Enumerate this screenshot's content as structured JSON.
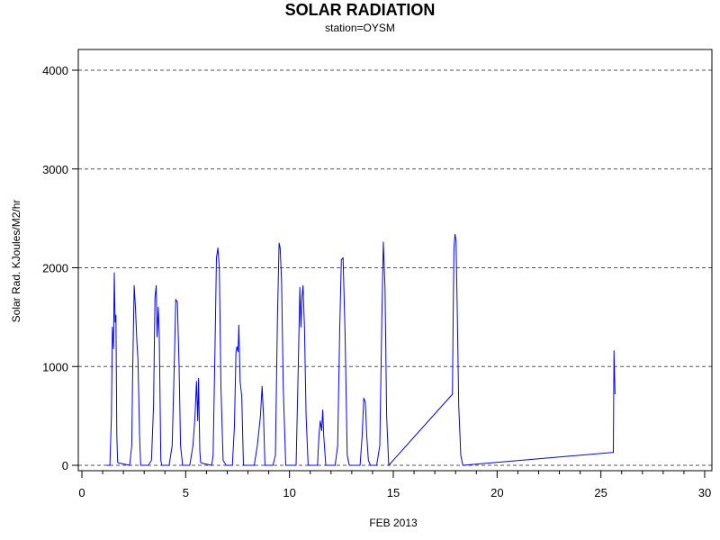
{
  "chart_data": {
    "type": "line",
    "title": "SOLAR RADIATION",
    "subtitle": "station=OYSM",
    "xlabel": "FEB 2013",
    "ylabel": "Solar Rad. KJoules/M2/hr",
    "xlim": [
      0,
      30
    ],
    "ylim": [
      0,
      4000
    ],
    "xticks": [
      0,
      5,
      10,
      15,
      20,
      25,
      30
    ],
    "yticks": [
      0,
      1000,
      2000,
      3000,
      4000
    ],
    "grid": "horizontal dashed at y ticks",
    "line_color": "#0000ff",
    "series": [
      {
        "x": [
          1.2,
          1.35,
          1.42,
          1.47,
          1.52,
          1.56,
          1.6,
          1.64,
          1.68,
          1.72,
          1.8,
          1.85,
          2.3,
          2.4,
          2.45,
          2.52,
          2.58,
          2.65,
          2.7,
          2.78,
          2.83,
          3.2,
          3.35,
          3.45,
          3.52,
          3.58,
          3.62,
          3.68,
          3.73,
          3.8,
          3.85,
          4.2,
          4.35,
          4.45,
          4.52,
          4.6,
          4.68,
          4.75,
          4.85,
          5.2,
          5.35,
          5.45,
          5.52,
          5.58,
          5.62,
          5.68,
          5.72,
          5.8,
          6.25,
          6.32,
          6.42,
          6.48,
          6.55,
          6.62,
          6.7,
          6.8,
          6.95,
          7.25,
          7.35,
          7.42,
          7.47,
          7.52,
          7.56,
          7.62,
          7.7,
          7.78,
          7.85,
          8.2,
          8.3,
          8.45,
          8.6,
          8.68,
          8.75,
          8.82,
          9.2,
          9.32,
          9.42,
          9.5,
          9.55,
          9.62,
          9.7,
          9.82,
          10.2,
          10.32,
          10.42,
          10.5,
          10.55,
          10.6,
          10.65,
          10.72,
          10.8,
          10.9,
          11.2,
          11.35,
          11.42,
          11.48,
          11.55,
          11.6,
          11.65,
          11.75,
          11.85,
          12.2,
          12.32,
          12.42,
          12.5,
          12.58,
          12.68,
          12.78,
          12.88,
          13.2,
          13.4,
          13.5,
          13.58,
          13.65,
          13.72,
          13.8,
          13.9,
          14.2,
          14.35,
          14.45,
          14.52,
          14.6,
          14.68,
          14.78,
          17.85,
          17.88,
          17.92,
          17.97,
          18.02,
          18.08,
          18.15,
          18.25,
          18.35,
          25.55,
          25.6,
          25.63,
          25.68
        ],
        "y": [
          0,
          0,
          500,
          1400,
          1180,
          1950,
          1450,
          1520,
          300,
          30,
          20,
          20,
          0,
          200,
          1000,
          1820,
          1600,
          1250,
          1070,
          300,
          0,
          0,
          50,
          600,
          1700,
          1820,
          1300,
          1600,
          1300,
          50,
          0,
          0,
          200,
          1000,
          1680,
          1650,
          1000,
          200,
          0,
          0,
          200,
          500,
          850,
          450,
          880,
          150,
          30,
          20,
          0,
          100,
          1300,
          2100,
          2200,
          2000,
          800,
          50,
          0,
          0,
          400,
          1150,
          1200,
          1150,
          1420,
          850,
          700,
          0,
          0,
          0,
          0,
          200,
          500,
          800,
          500,
          0,
          0,
          100,
          1500,
          2250,
          2200,
          1850,
          800,
          0,
          0,
          0,
          1000,
          1800,
          1400,
          1700,
          1820,
          1400,
          500,
          0,
          0,
          0,
          300,
          450,
          350,
          560,
          300,
          0,
          0,
          0,
          200,
          1400,
          2080,
          2100,
          1300,
          100,
          0,
          0,
          0,
          300,
          680,
          640,
          300,
          50,
          0,
          0,
          200,
          1500,
          2260,
          1800,
          500,
          0,
          720,
          1400,
          2200,
          2340,
          2280,
          1600,
          600,
          100,
          0,
          130,
          130,
          1160,
          720
        ]
      }
    ]
  }
}
